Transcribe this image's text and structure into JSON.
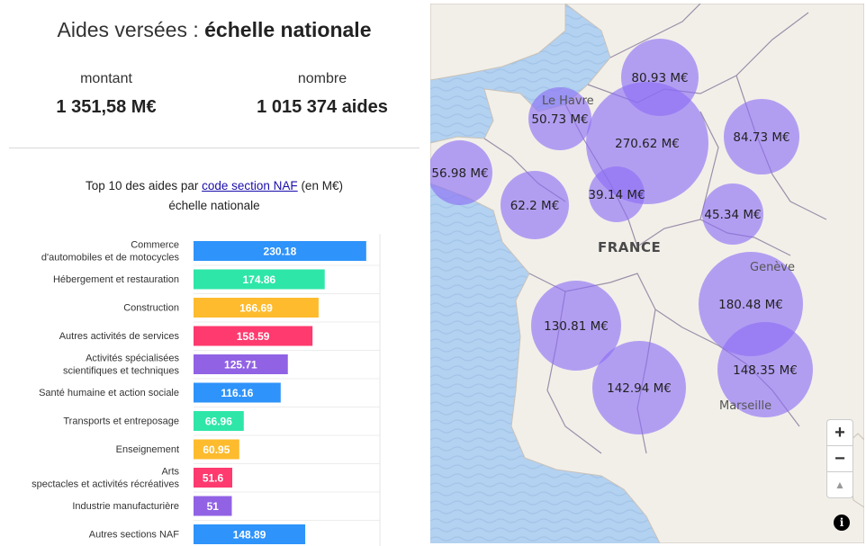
{
  "header": {
    "title_prefix": "Aides versées : ",
    "title_bold": "échelle nationale"
  },
  "kpis": {
    "amount_label": "montant",
    "amount_value": "1 351,58 M€",
    "count_label": "nombre",
    "count_value": "1 015 374 aides"
  },
  "chart_title": {
    "prefix": "Top 10 des aides par ",
    "link": "code section NAF",
    "suffix": " (en M€)",
    "line2": "échelle nationale"
  },
  "chart_data": {
    "type": "bar",
    "title": "Top 10 des aides par code section NAF (en M€) échelle nationale",
    "orientation": "horizontal",
    "categories": [
      [
        "Commerce",
        "d'automobiles et de motocycles"
      ],
      [
        "Hébergement et restauration"
      ],
      [
        "Construction"
      ],
      [
        "Autres activités de services"
      ],
      [
        "Activités spécialisées",
        "scientifiques et techniques"
      ],
      [
        "Santé humaine et action sociale"
      ],
      [
        "Transports et entreposage"
      ],
      [
        "Enseignement"
      ],
      [
        "Arts",
        "spectacles et activités récréatives"
      ],
      [
        "Industrie manufacturière"
      ],
      [
        "Autres sections NAF"
      ]
    ],
    "values": [
      230.18,
      174.86,
      166.69,
      158.59,
      125.71,
      116.16,
      66.96,
      60.95,
      51.6,
      51,
      148.89
    ],
    "value_labels": [
      "230.18",
      "174.86",
      "166.69",
      "158.59",
      "125.71",
      "116.16",
      "66.96",
      "60.95",
      "51.6",
      "51",
      "148.89"
    ],
    "colors": [
      "#2e93fa",
      "#2ee6a8",
      "#fdbb2d",
      "#ff3a6e",
      "#9162e4",
      "#2e93fa",
      "#2ee6a8",
      "#fdbb2d",
      "#ff3a6e",
      "#9162e4",
      "#2e93fa"
    ],
    "xlim": [
      0,
      240
    ]
  },
  "map": {
    "country_label": "FRANCE",
    "cities": [
      "Le Havre",
      "Genève",
      "Marseille"
    ],
    "bubbles": [
      {
        "label": "80.93 M€",
        "value": 80.93
      },
      {
        "label": "50.73 M€",
        "value": 50.73
      },
      {
        "label": "270.62 M€",
        "value": 270.62
      },
      {
        "label": "84.73 M€",
        "value": 84.73
      },
      {
        "label": "56.98 M€",
        "value": 56.98
      },
      {
        "label": "62.2 M€",
        "value": 62.2
      },
      {
        "label": "39.14 M€",
        "value": 39.14
      },
      {
        "label": "45.34 M€",
        "value": 45.34
      },
      {
        "label": "180.48 M€",
        "value": 180.48
      },
      {
        "label": "130.81 M€",
        "value": 130.81
      },
      {
        "label": "148.35 M€",
        "value": 148.35
      },
      {
        "label": "142.94 M€",
        "value": 142.94
      }
    ],
    "controls": {
      "zoom_in": "+",
      "zoom_out": "−",
      "compass": "▲",
      "info": "i"
    },
    "colors": {
      "sea": "#b3d1f0",
      "land": "#f2efe9",
      "border": "#9b8fa8",
      "bubble": "#8a6cf5"
    }
  }
}
